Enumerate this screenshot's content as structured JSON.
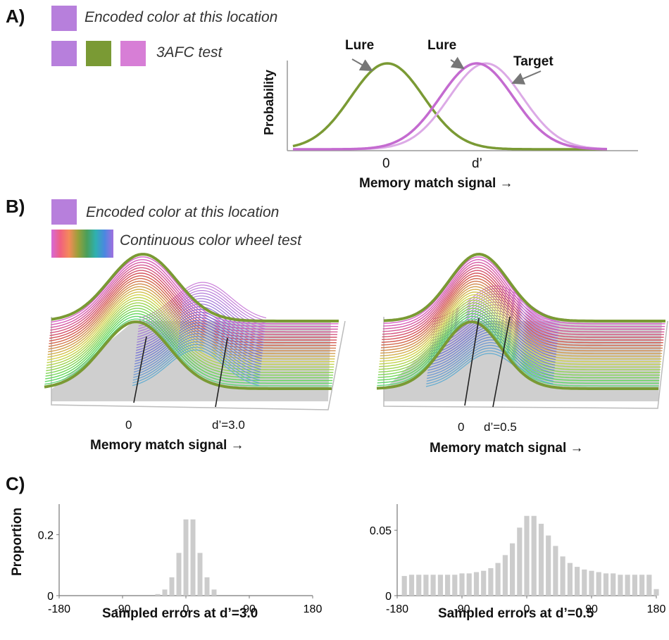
{
  "panels": {
    "a": "A)",
    "b": "B)",
    "c": "C)"
  },
  "colors": {
    "purple": "#b77fdc",
    "green": "#7a9a34",
    "pink": "#d77ed6",
    "axis": "#777777",
    "bar": "#cccccc"
  },
  "panel_a": {
    "encoded_label": "Encoded color at this location",
    "test_label": "3AFC test",
    "ylabel": "Probability",
    "xlabel": "Memory match signal →",
    "tick_0": "0",
    "tick_d": "d’",
    "lure_left": "Lure",
    "lure_right": "Lure",
    "target": "Target"
  },
  "panel_b": {
    "encoded_label": "Encoded color at this location",
    "test_label": "Continuous color wheel test",
    "left": {
      "tick_0": "0",
      "tick_d": "d’=3.0",
      "xlabel": "Memory match signal →"
    },
    "right": {
      "tick_0": "0",
      "tick_d": "d’=0.5",
      "xlabel": "Memory match signal →"
    }
  },
  "chart_data": [
    {
      "type": "bar",
      "title": "",
      "xlabel": "Sampled errors at d’=3.0",
      "ylabel": "Proportion",
      "xlim": [
        -180,
        180
      ],
      "ylim": [
        0,
        0.3
      ],
      "xticks": [
        "-180",
        "-90",
        "0",
        "90",
        "180"
      ],
      "yticks": [
        "0",
        "0.2"
      ],
      "x": [
        -40,
        -30,
        -20,
        -10,
        0,
        10,
        20,
        30,
        40
      ],
      "values": [
        0.005,
        0.02,
        0.06,
        0.14,
        0.25,
        0.25,
        0.14,
        0.06,
        0.02
      ]
    },
    {
      "type": "bar",
      "title": "",
      "xlabel": "Sampled errors at d’=0.5",
      "ylabel": "",
      "xlim": [
        -180,
        180
      ],
      "ylim": [
        0,
        0.07
      ],
      "xticks": [
        "-180",
        "-90",
        "0",
        "90",
        "180"
      ],
      "yticks": [
        "0",
        "0.05"
      ],
      "x": [
        -170,
        -160,
        -150,
        -140,
        -130,
        -120,
        -110,
        -100,
        -90,
        -80,
        -70,
        -60,
        -50,
        -40,
        -30,
        -20,
        -10,
        0,
        10,
        20,
        30,
        40,
        50,
        60,
        70,
        80,
        90,
        100,
        110,
        120,
        130,
        140,
        150,
        160,
        170,
        180
      ],
      "values": [
        0.015,
        0.016,
        0.016,
        0.016,
        0.016,
        0.016,
        0.016,
        0.016,
        0.017,
        0.017,
        0.018,
        0.019,
        0.021,
        0.025,
        0.031,
        0.04,
        0.052,
        0.061,
        0.061,
        0.055,
        0.046,
        0.038,
        0.03,
        0.025,
        0.022,
        0.02,
        0.019,
        0.018,
        0.017,
        0.017,
        0.016,
        0.016,
        0.016,
        0.016,
        0.016,
        0.005
      ]
    }
  ]
}
